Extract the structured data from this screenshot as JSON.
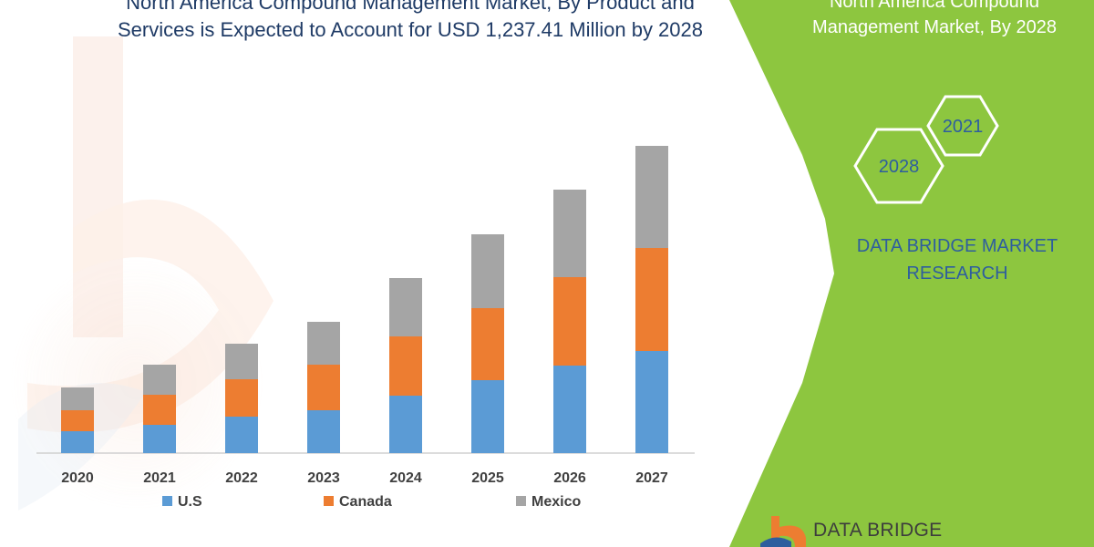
{
  "title": {
    "line1": "North America Compound Management Market, By Product and",
    "line2": "Services  is Expected to Account for USD 1,237.41 Million by 2028"
  },
  "panel": {
    "title_line1": "North America Compound",
    "title_line2": "Management Market, By 2028",
    "hex_badges": [
      "2021",
      "2028"
    ],
    "brand_line1": "DATA BRIDGE MARKET",
    "brand_line2": "RESEARCH"
  },
  "footer_logo_text": "DATA BRIDGE",
  "colors": {
    "us": "#5b9bd5",
    "canada": "#ed7d31",
    "mexico": "#a5a5a5",
    "panel_green": "#8dc63f",
    "title_blue": "#1f3b66",
    "brand_blue": "#2e5e9e"
  },
  "chart_data": {
    "type": "bar",
    "stacked": true,
    "categories": [
      "2020",
      "2021",
      "2022",
      "2023",
      "2024",
      "2025",
      "2026",
      "2027"
    ],
    "series": [
      {
        "name": "U.S",
        "values": [
          24,
          31,
          40,
          47,
          63,
          80,
          96,
          112
        ]
      },
      {
        "name": "Canada",
        "values": [
          23,
          33,
          41,
          50,
          65,
          79,
          97,
          113
        ]
      },
      {
        "name": "Mexico",
        "values": [
          25,
          33,
          39,
          47,
          64,
          81,
          96,
          112
        ]
      }
    ],
    "ylim": [
      0,
      340
    ],
    "legend": "bottom",
    "grid": false,
    "xlabel": "",
    "ylabel": ""
  }
}
